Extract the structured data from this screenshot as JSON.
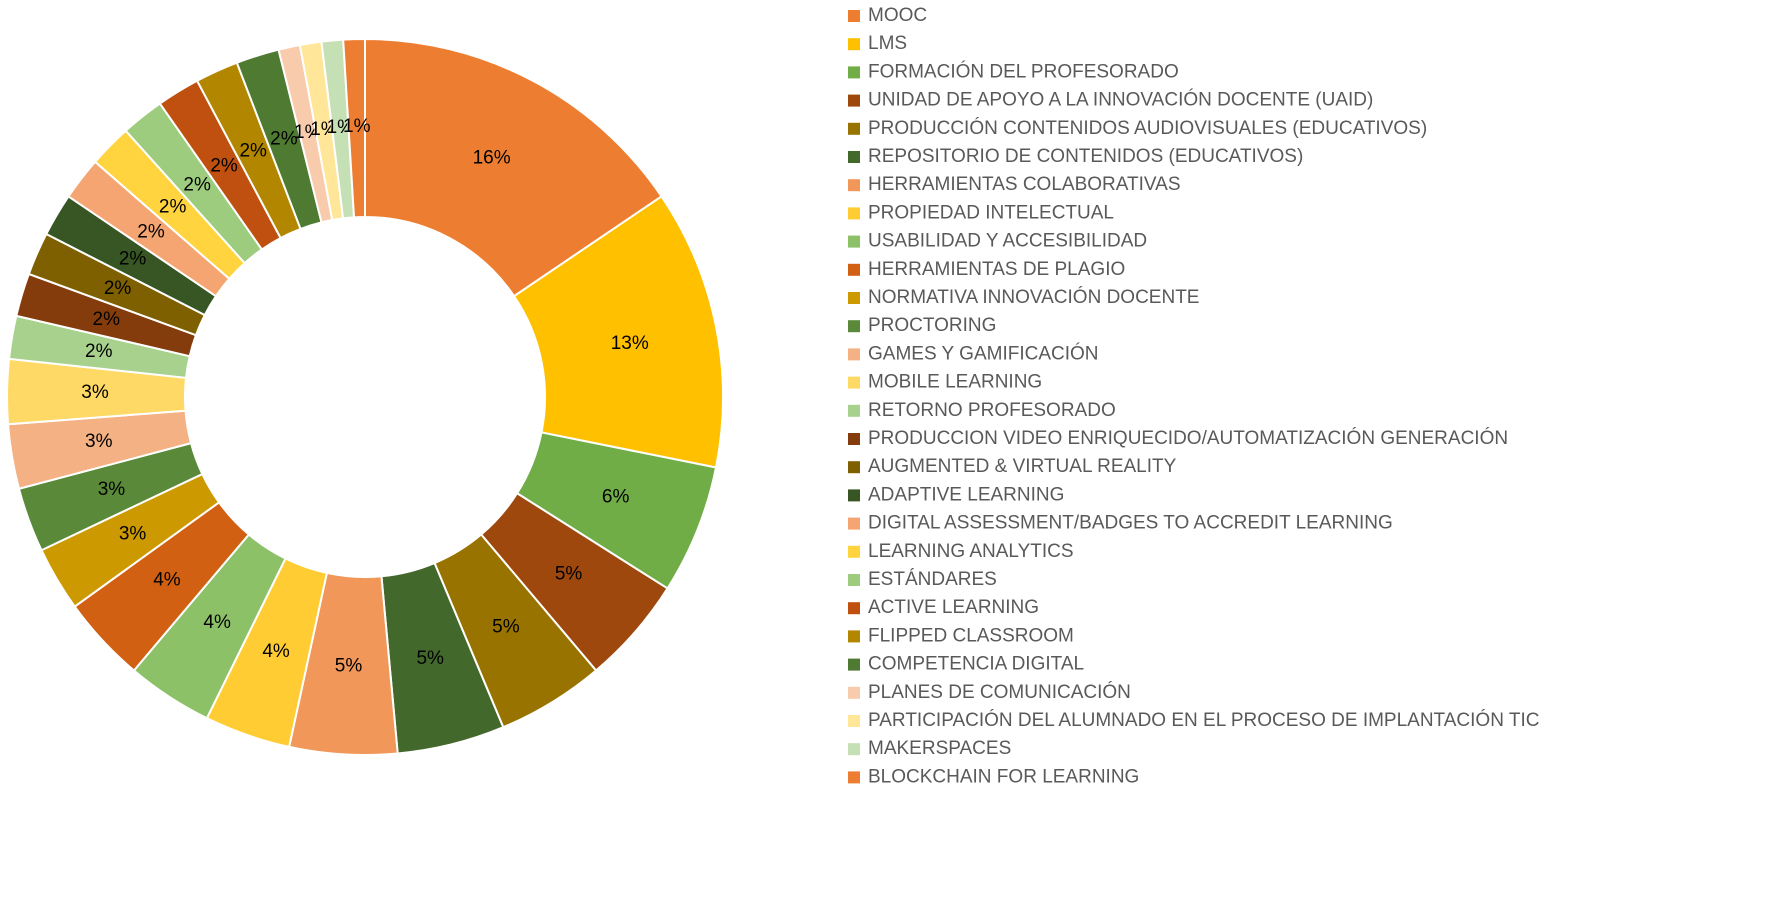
{
  "chart_data": {
    "type": "donut",
    "categories": [
      "MOOC",
      "LMS",
      "FORMACIÓN DEL PROFESORADO",
      "UNIDAD DE APOYO A LA INNOVACIÓN DOCENTE (UAID)",
      "PRODUCCIÓN CONTENIDOS AUDIOVISUALES (EDUCATIVOS)",
      "REPOSITORIO DE CONTENIDOS (EDUCATIVOS)",
      "HERRAMIENTAS COLABORATIVAS",
      "PROPIEDAD INTELECTUAL",
      "USABILIDAD Y ACCESIBILIDAD",
      "HERRAMIENTAS DE PLAGIO",
      "NORMATIVA INNOVACIÓN DOCENTE",
      "PROCTORING",
      "GAMES Y GAMIFICACIÓN",
      "MOBILE LEARNING",
      "RETORNO PROFESORADO",
      "PRODUCCION VIDEO ENRIQUECIDO/AUTOMATIZACIÓN GENERACIÓN",
      "AUGMENTED & VIRTUAL REALITY",
      "ADAPTIVE LEARNING",
      "DIGITAL ASSESSMENT/BADGES TO ACCREDIT LEARNING",
      "LEARNING ANALYTICS",
      "ESTÁNDARES",
      "ACTIVE LEARNING",
      "FLIPPED CLASSROOM",
      "COMPETENCIA DIGITAL",
      "PLANES DE COMUNICACIÓN",
      "PARTICIPACIÓN DEL ALUMNADO EN EL PROCESO DE IMPLANTACIÓN TIC",
      "MAKERSPACES",
      "BLOCKCHAIN FOR LEARNING"
    ],
    "values": [
      16,
      13,
      6,
      5,
      5,
      5,
      5,
      4,
      4,
      4,
      3,
      3,
      3,
      3,
      2,
      2,
      2,
      2,
      2,
      2,
      2,
      2,
      2,
      2,
      1,
      1,
      1,
      1
    ],
    "value_labels": [
      "16%",
      "13%",
      "6%",
      "5%",
      "5%",
      "5%",
      "5%",
      "4%",
      "4%",
      "4%",
      "3%",
      "3%",
      "3%",
      "3%",
      "2%",
      "2%",
      "2%",
      "2%",
      "2%",
      "2%",
      "2%",
      "2%",
      "2%",
      "2%",
      "1%",
      "1%",
      "1%",
      "1%"
    ],
    "colors": [
      "#ED7D31",
      "#FFC000",
      "#70AD47",
      "#9E480E",
      "#997300",
      "#43682B",
      "#F1975A",
      "#FFCD33",
      "#8CC168",
      "#D26012",
      "#CC9A00",
      "#5A8A39",
      "#F4B183",
      "#FFD966",
      "#A9D18E",
      "#843C0C",
      "#7F6000",
      "#375623",
      "#F4A571",
      "#FFD43F",
      "#9DCC7E",
      "#BF5010",
      "#B38600",
      "#4E7A32",
      "#F8CBAD",
      "#FFE699",
      "#C5E0B4",
      "#ED7D31"
    ],
    "legend": "right"
  }
}
